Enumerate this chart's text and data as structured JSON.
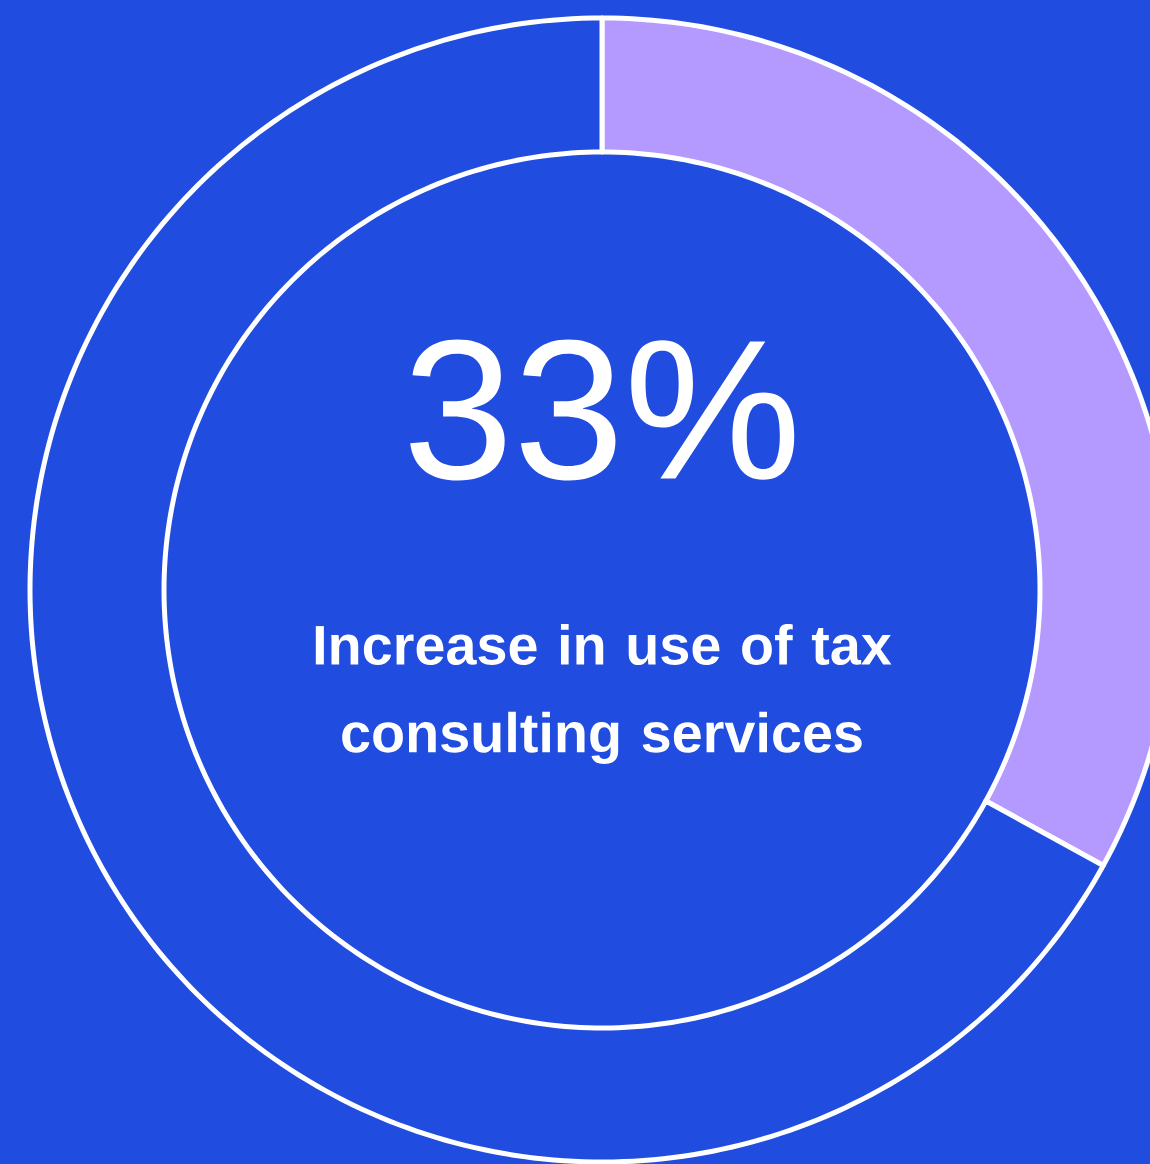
{
  "chart_data": {
    "type": "donut",
    "title": "Increase in use of tax consulting services",
    "categories": [
      null,
      null
    ],
    "values": [
      33,
      67
    ],
    "colors": [
      "#b499fe",
      "#204ce0"
    ],
    "value_labels": [
      "33%",
      null
    ]
  }
}
